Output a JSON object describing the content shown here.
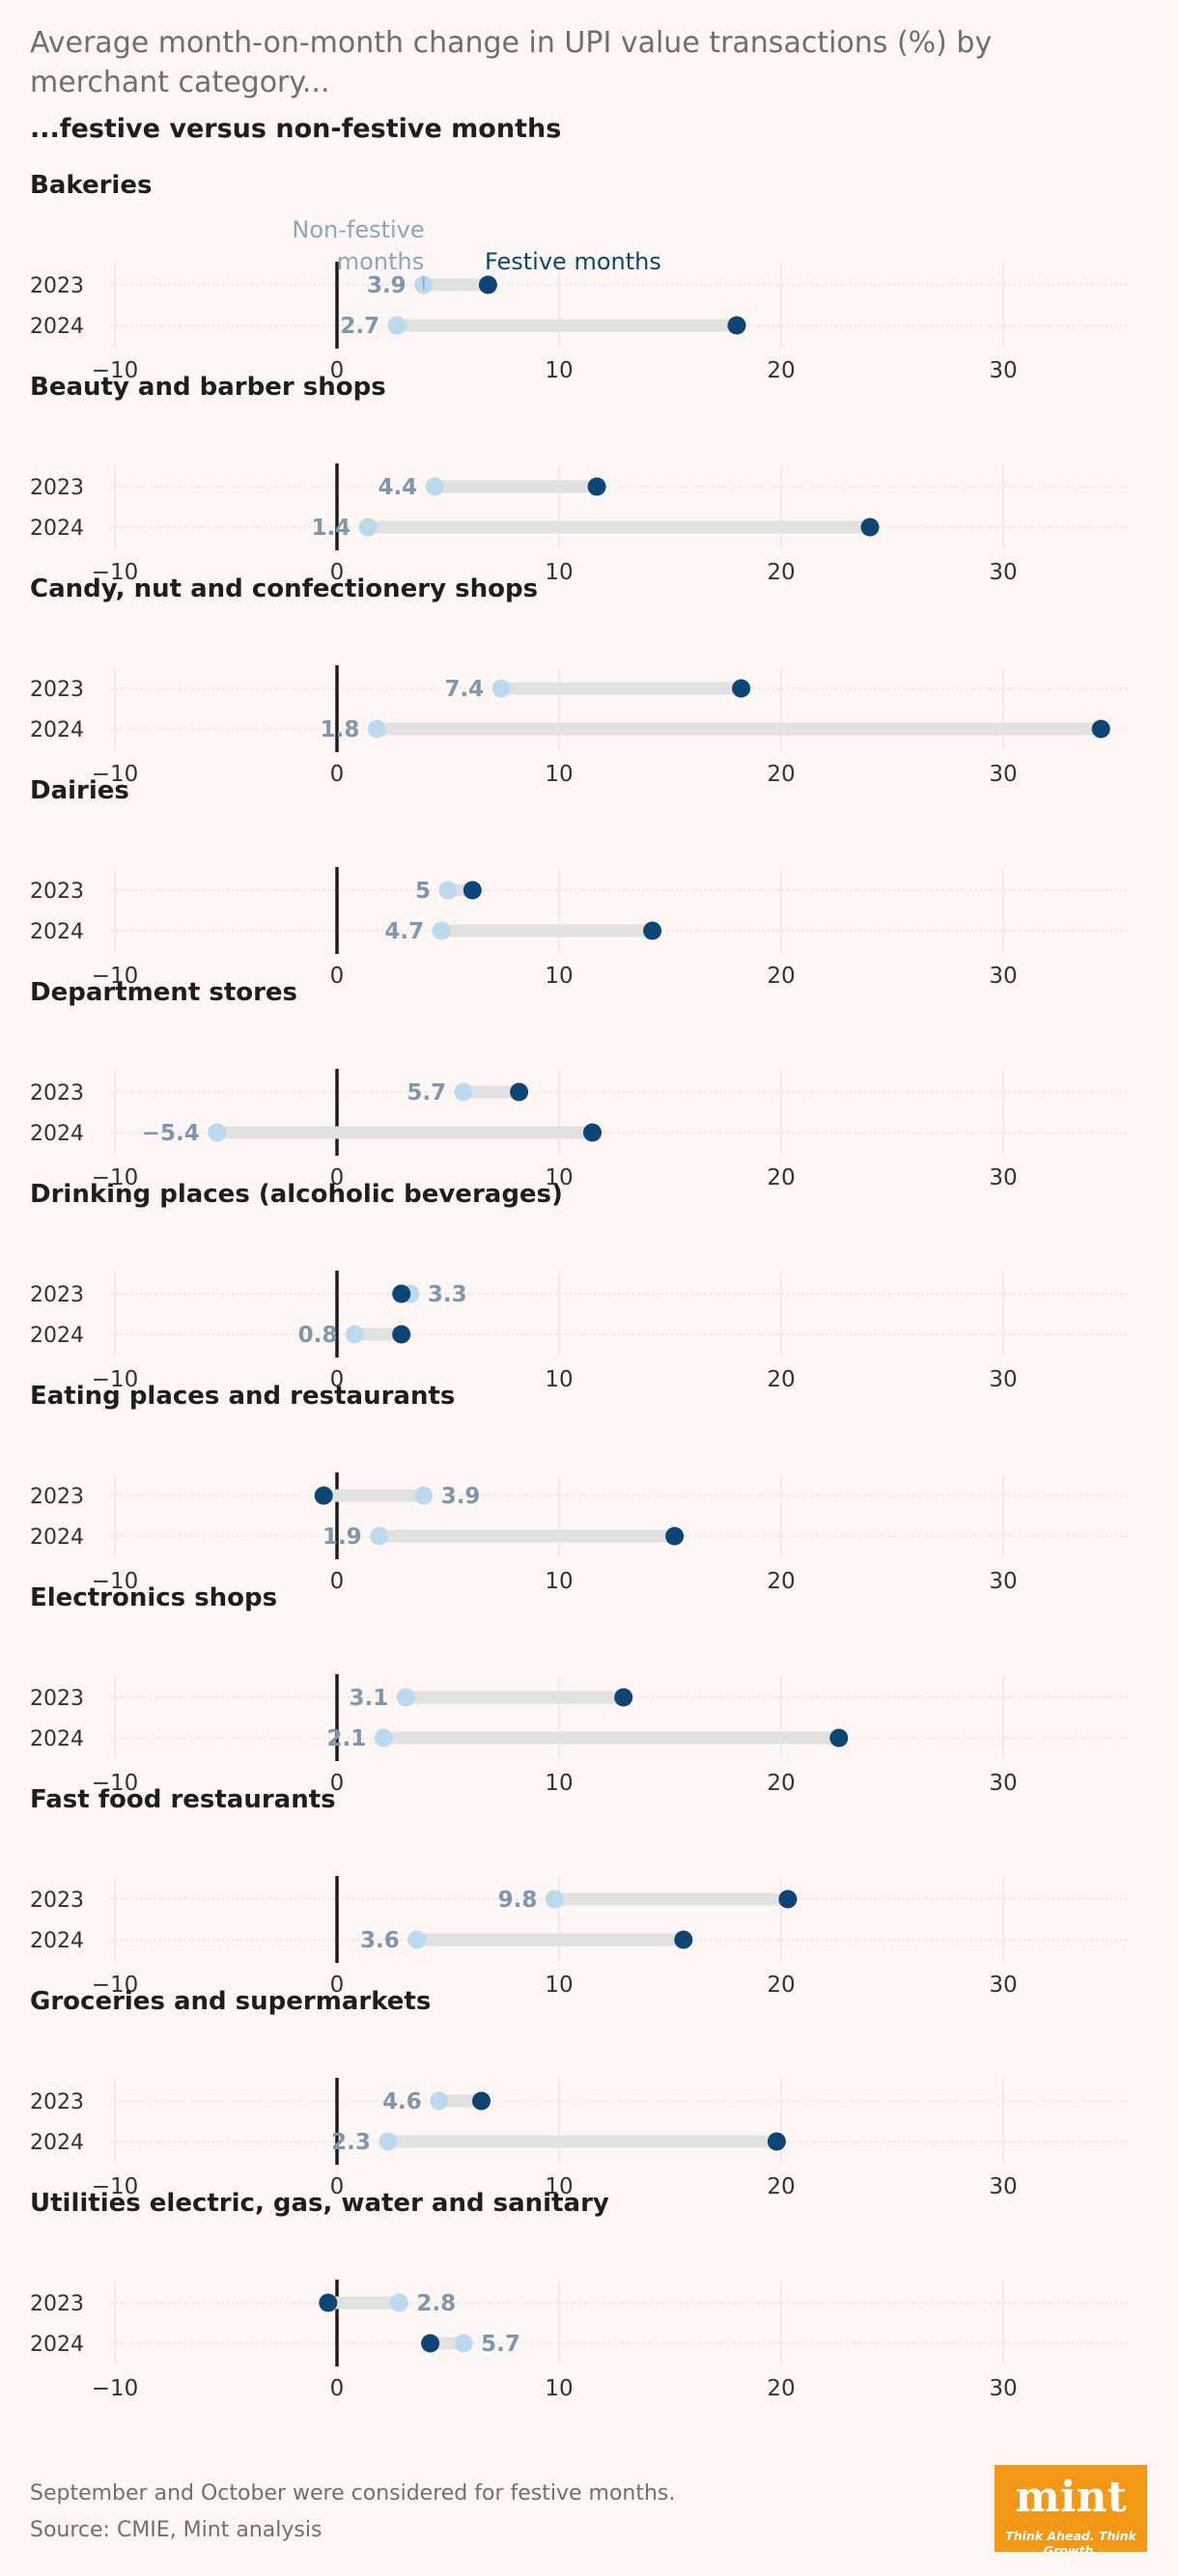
{
  "header": {
    "title": "Average month-on-month change in UPI value transactions (%) by merchant category...",
    "subtitle": "...festive versus non-festive months"
  },
  "legend": {
    "non_festive": "Non-festive months",
    "festive": "Festive months"
  },
  "colors": {
    "non_festive": "#bcd9ee",
    "festive": "#0e4574",
    "connector": "#e1e1e1",
    "label": "#7f97ad",
    "legend_non_festive": "#8aa6bd",
    "legend_festive": "#0e4574",
    "zero_line": "#1e1e1e",
    "grid": "#e4e4e4"
  },
  "footer": {
    "note": "September and October were considered for festive months.",
    "source": "Source: CMIE, Mint analysis"
  },
  "logo": {
    "word": "mint",
    "tagline": "Think Ahead. Think Growth."
  },
  "chart_data": [
    {
      "type": "dumbbell",
      "title": "Bakeries",
      "years": [
        "2023",
        "2024"
      ],
      "non_festive": [
        3.9,
        2.7
      ],
      "non_festive_labels": [
        "3.9",
        "2.7"
      ],
      "festive": [
        6.8,
        18.0
      ],
      "xlim": [
        -10,
        35
      ],
      "xticks": [
        -10,
        0,
        10,
        20,
        30
      ],
      "xtick_labels": [
        "−10",
        "0",
        "10",
        "20",
        "30"
      ]
    },
    {
      "type": "dumbbell",
      "title": "Beauty and barber shops",
      "years": [
        "2023",
        "2024"
      ],
      "non_festive": [
        4.4,
        1.4
      ],
      "non_festive_labels": [
        "4.4",
        "1.4"
      ],
      "festive": [
        11.7,
        24.0
      ],
      "xlim": [
        -10,
        35
      ],
      "xticks": [
        -10,
        0,
        10,
        20,
        30
      ],
      "xtick_labels": [
        "−10",
        "0",
        "10",
        "20",
        "30"
      ]
    },
    {
      "type": "dumbbell",
      "title": "Candy, nut and confectionery shops",
      "years": [
        "2023",
        "2024"
      ],
      "non_festive": [
        7.4,
        1.8
      ],
      "non_festive_labels": [
        "7.4",
        "1.8"
      ],
      "festive": [
        18.2,
        34.4
      ],
      "xlim": [
        -10,
        35
      ],
      "xticks": [
        -10,
        0,
        10,
        20,
        30
      ],
      "xtick_labels": [
        "−10",
        "0",
        "10",
        "20",
        "30"
      ]
    },
    {
      "type": "dumbbell",
      "title": "Dairies",
      "years": [
        "2023",
        "2024"
      ],
      "non_festive": [
        5.0,
        4.7
      ],
      "non_festive_labels": [
        "5",
        "4.7"
      ],
      "festive": [
        6.1,
        14.2
      ],
      "xlim": [
        -10,
        35
      ],
      "xticks": [
        -10,
        0,
        10,
        20,
        30
      ],
      "xtick_labels": [
        "−10",
        "0",
        "10",
        "20",
        "30"
      ]
    },
    {
      "type": "dumbbell",
      "title": "Department stores",
      "years": [
        "2023",
        "2024"
      ],
      "non_festive": [
        5.7,
        -5.4
      ],
      "non_festive_labels": [
        "5.7",
        "−5.4"
      ],
      "festive": [
        8.2,
        11.5
      ],
      "xlim": [
        -10,
        35
      ],
      "xticks": [
        -10,
        0,
        10,
        20,
        30
      ],
      "xtick_labels": [
        "−10",
        "0",
        "10",
        "20",
        "30"
      ]
    },
    {
      "type": "dumbbell",
      "title": "Drinking places (alcoholic beverages)",
      "years": [
        "2023",
        "2024"
      ],
      "non_festive": [
        3.3,
        0.8
      ],
      "non_festive_labels": [
        "3.3",
        "0.8"
      ],
      "festive": [
        2.9,
        2.9
      ],
      "xlim": [
        -10,
        35
      ],
      "xticks": [
        -10,
        0,
        10,
        20,
        30
      ],
      "xtick_labels": [
        "−10",
        "0",
        "10",
        "20",
        "30"
      ]
    },
    {
      "type": "dumbbell",
      "title": "Eating places and restaurants",
      "years": [
        "2023",
        "2024"
      ],
      "non_festive": [
        3.9,
        1.9
      ],
      "non_festive_labels": [
        "3.9",
        "1.9"
      ],
      "festive": [
        -0.6,
        15.2
      ],
      "xlim": [
        -10,
        35
      ],
      "xticks": [
        -10,
        0,
        10,
        20,
        30
      ],
      "xtick_labels": [
        "−10",
        "0",
        "10",
        "20",
        "30"
      ]
    },
    {
      "type": "dumbbell",
      "title": "Electronics shops",
      "years": [
        "2023",
        "2024"
      ],
      "non_festive": [
        3.1,
        2.1
      ],
      "non_festive_labels": [
        "3.1",
        "2.1"
      ],
      "festive": [
        12.9,
        22.6
      ],
      "xlim": [
        -10,
        35
      ],
      "xticks": [
        -10,
        0,
        10,
        20,
        30
      ],
      "xtick_labels": [
        "−10",
        "0",
        "10",
        "20",
        "30"
      ]
    },
    {
      "type": "dumbbell",
      "title": "Fast food restaurants",
      "years": [
        "2023",
        "2024"
      ],
      "non_festive": [
        9.8,
        3.6
      ],
      "non_festive_labels": [
        "9.8",
        "3.6"
      ],
      "festive": [
        20.3,
        15.6
      ],
      "xlim": [
        -10,
        35
      ],
      "xticks": [
        -10,
        0,
        10,
        20,
        30
      ],
      "xtick_labels": [
        "−10",
        "0",
        "10",
        "20",
        "30"
      ]
    },
    {
      "type": "dumbbell",
      "title": "Groceries and supermarkets",
      "years": [
        "2023",
        "2024"
      ],
      "non_festive": [
        4.6,
        2.3
      ],
      "non_festive_labels": [
        "4.6",
        "2.3"
      ],
      "festive": [
        6.5,
        19.8
      ],
      "xlim": [
        -10,
        35
      ],
      "xticks": [
        -10,
        0,
        10,
        20,
        30
      ],
      "xtick_labels": [
        "−10",
        "0",
        "10",
        "20",
        "30"
      ]
    },
    {
      "type": "dumbbell",
      "title": "Utilities electric, gas, water and sanitary",
      "years": [
        "2023",
        "2024"
      ],
      "non_festive": [
        2.8,
        5.7
      ],
      "non_festive_labels": [
        "2.8",
        "5.7"
      ],
      "festive": [
        -0.4,
        4.2
      ],
      "xlim": [
        -10,
        35
      ],
      "xticks": [
        -10,
        0,
        10,
        20,
        30
      ],
      "xtick_labels": [
        "−10",
        "0",
        "10",
        "20",
        "30"
      ]
    }
  ]
}
